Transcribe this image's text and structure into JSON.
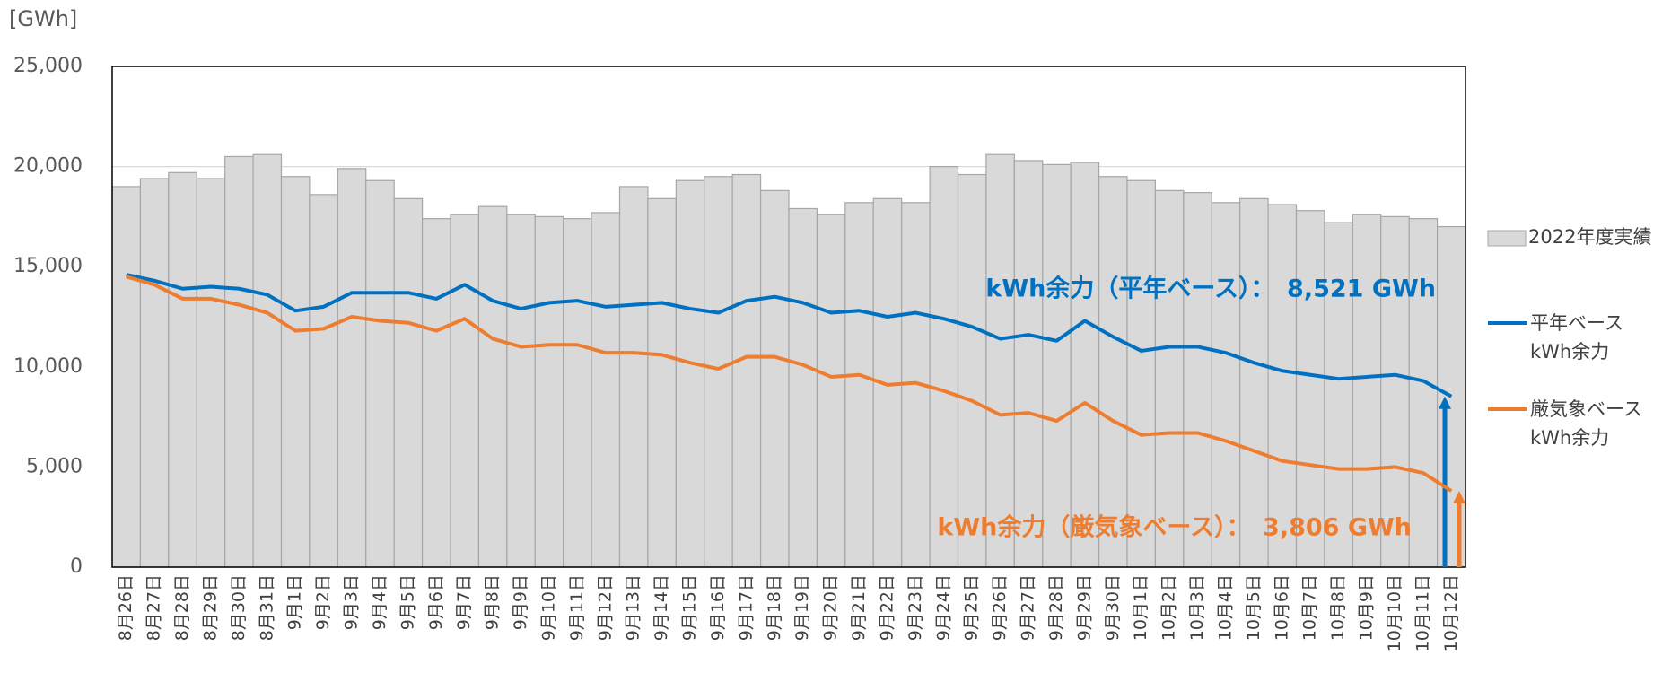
{
  "chart_data": {
    "type": "bar-line",
    "y_unit_label": "[GWh]",
    "categories": [
      "8月26日",
      "8月27日",
      "8月28日",
      "8月29日",
      "8月30日",
      "8月31日",
      "9月1日",
      "9月2日",
      "9月3日",
      "9月4日",
      "9月5日",
      "9月6日",
      "9月7日",
      "9月8日",
      "9月9日",
      "9月10日",
      "9月11日",
      "9月12日",
      "9月13日",
      "9月14日",
      "9月15日",
      "9月16日",
      "9月17日",
      "9月18日",
      "9月19日",
      "9月20日",
      "9月21日",
      "9月22日",
      "9月23日",
      "9月24日",
      "9月25日",
      "9月26日",
      "9月27日",
      "9月28日",
      "9月29日",
      "9月30日",
      "10月1日",
      "10月2日",
      "10月3日",
      "10月4日",
      "10月5日",
      "10月6日",
      "10月7日",
      "10月8日",
      "10月9日",
      "10月10日",
      "10月11日",
      "10月12日"
    ],
    "bars": {
      "name": "2022年度実績",
      "color": "#d9d9d9",
      "values": [
        19000,
        19400,
        19700,
        19400,
        20500,
        20600,
        19500,
        18600,
        19900,
        19300,
        18400,
        17400,
        17600,
        18000,
        17600,
        17500,
        17400,
        17700,
        19000,
        18400,
        19300,
        19500,
        19600,
        18800,
        17900,
        17600,
        18200,
        18400,
        18200,
        20000,
        19600,
        20600,
        20300,
        20100,
        20200,
        19500,
        19300,
        18800,
        18700,
        18200,
        18400,
        18100,
        17800,
        17200,
        17600,
        17500,
        17400,
        17000
      ]
    },
    "series": [
      {
        "name": "平年ベース\nkWh余力",
        "color": "#0070c0",
        "values": [
          14600,
          14300,
          13900,
          14000,
          13900,
          13600,
          12800,
          13000,
          13700,
          13700,
          13700,
          13400,
          14100,
          13300,
          12900,
          13200,
          13300,
          13000,
          13100,
          13200,
          12900,
          12700,
          13300,
          13500,
          13200,
          12700,
          12800,
          12500,
          12700,
          12400,
          12000,
          11400,
          11600,
          11300,
          12300,
          11500,
          10800,
          11000,
          11000,
          10700,
          10200,
          9800,
          9600,
          9400,
          9500,
          9600,
          9300,
          8521
        ]
      },
      {
        "name": "厳気象ベース\nkWh余力",
        "color": "#ed7d31",
        "values": [
          14500,
          14100,
          13400,
          13400,
          13100,
          12700,
          11800,
          11900,
          12500,
          12300,
          12200,
          11800,
          12400,
          11400,
          11000,
          11100,
          11100,
          10700,
          10700,
          10600,
          10200,
          9900,
          10500,
          10500,
          10100,
          9500,
          9600,
          9100,
          9200,
          8800,
          8300,
          7600,
          7700,
          7300,
          8200,
          7300,
          6600,
          6700,
          6700,
          6300,
          5800,
          5300,
          5100,
          4900,
          4900,
          5000,
          4700,
          3806
        ]
      }
    ],
    "annotations": [
      "kWh余力（平年ベース）：　8,521 GWh",
      "kWh余力（厳気象ベース）：　3,806 GWh"
    ],
    "ylim": [
      0,
      25000
    ],
    "yticks": [
      0,
      {
        "value": 5000,
        "label": "5,000"
      },
      {
        "value": 10000,
        "label": "10,000"
      },
      {
        "value": 15000,
        "label": "15,000"
      },
      {
        "value": 20000,
        "label": "20,000"
      },
      {
        "value": 25000,
        "label": "25,000"
      }
    ],
    "grid": true
  }
}
